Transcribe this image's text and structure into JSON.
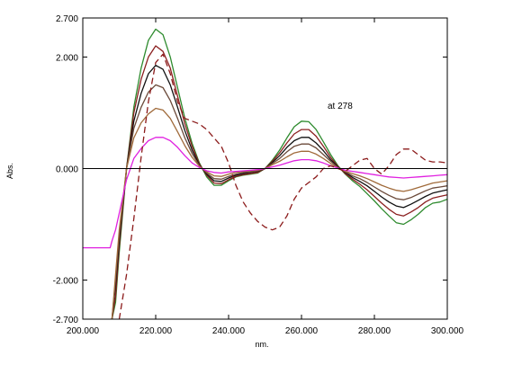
{
  "chart_data": {
    "type": "line",
    "xlabel": "nm.",
    "ylabel": "Abs.",
    "xlim": [
      200,
      300
    ],
    "ylim": [
      -2.7,
      2.7
    ],
    "x_ticks": [
      200,
      220,
      240,
      260,
      280,
      300
    ],
    "x_tick_labels": [
      "200.000",
      "220.000",
      "240.000",
      "260.000",
      "280.000",
      "300.000"
    ],
    "y_ticks": [
      2.7,
      2.0,
      0.0,
      -2.0,
      -2.7
    ],
    "y_tick_labels": [
      "2.700",
      "2.000",
      "0.000",
      "-2.000",
      "-2.700"
    ],
    "zero_line": true,
    "grid": false,
    "annotation": "at 278",
    "series": [
      {
        "color": "#2e8b2e",
        "dash": false,
        "x": [
          208,
          209,
          210,
          212,
          214,
          216,
          218,
          220,
          222,
          224,
          226,
          228,
          230,
          232,
          234,
          236,
          238,
          240,
          242,
          244,
          246,
          248,
          250,
          252,
          254,
          256,
          258,
          260,
          262,
          264,
          266,
          268,
          270,
          272,
          274,
          276,
          278,
          280,
          282,
          284,
          286,
          288,
          290,
          292,
          294,
          296,
          298,
          300
        ],
        "y": [
          -2.7,
          -2.4,
          -1.5,
          0.0,
          1.1,
          1.8,
          2.3,
          2.5,
          2.4,
          2.0,
          1.45,
          0.9,
          0.45,
          0.1,
          -0.15,
          -0.3,
          -0.3,
          -0.22,
          -0.15,
          -0.12,
          -0.1,
          -0.08,
          0.0,
          0.15,
          0.33,
          0.55,
          0.75,
          0.85,
          0.84,
          0.7,
          0.48,
          0.25,
          0.05,
          -0.1,
          -0.22,
          -0.32,
          -0.45,
          -0.58,
          -0.72,
          -0.85,
          -0.97,
          -1.0,
          -0.92,
          -0.82,
          -0.7,
          -0.62,
          -0.6,
          -0.55
        ]
      },
      {
        "color": "#8b2020",
        "dash": false,
        "x": [
          208,
          209,
          210,
          212,
          214,
          216,
          218,
          220,
          222,
          224,
          226,
          228,
          230,
          232,
          234,
          236,
          238,
          240,
          242,
          244,
          246,
          248,
          250,
          252,
          254,
          256,
          258,
          260,
          262,
          264,
          266,
          268,
          270,
          272,
          274,
          276,
          278,
          280,
          282,
          284,
          286,
          288,
          290,
          292,
          294,
          296,
          298,
          300
        ],
        "y": [
          -2.7,
          -2.3,
          -1.4,
          0.0,
          1.0,
          1.6,
          2.0,
          2.2,
          2.1,
          1.8,
          1.3,
          0.8,
          0.4,
          0.08,
          -0.12,
          -0.26,
          -0.27,
          -0.2,
          -0.14,
          -0.11,
          -0.09,
          -0.07,
          0.0,
          0.13,
          0.28,
          0.46,
          0.62,
          0.7,
          0.7,
          0.58,
          0.4,
          0.2,
          0.04,
          -0.09,
          -0.19,
          -0.28,
          -0.38,
          -0.5,
          -0.62,
          -0.73,
          -0.82,
          -0.85,
          -0.78,
          -0.7,
          -0.6,
          -0.53,
          -0.5,
          -0.47
        ]
      },
      {
        "color": "#111111",
        "dash": false,
        "x": [
          208,
          209,
          210,
          212,
          214,
          216,
          218,
          220,
          222,
          224,
          226,
          228,
          230,
          232,
          234,
          236,
          238,
          240,
          242,
          244,
          246,
          248,
          250,
          252,
          254,
          256,
          258,
          260,
          262,
          264,
          266,
          268,
          270,
          272,
          274,
          276,
          278,
          280,
          282,
          284,
          286,
          288,
          290,
          292,
          294,
          296,
          298,
          300
        ],
        "y": [
          -2.7,
          -2.1,
          -1.3,
          0.0,
          0.85,
          1.35,
          1.7,
          1.85,
          1.78,
          1.5,
          1.1,
          0.68,
          0.33,
          0.06,
          -0.1,
          -0.22,
          -0.23,
          -0.17,
          -0.12,
          -0.09,
          -0.07,
          -0.05,
          0.0,
          0.11,
          0.23,
          0.38,
          0.5,
          0.56,
          0.56,
          0.46,
          0.32,
          0.16,
          0.03,
          -0.07,
          -0.16,
          -0.23,
          -0.31,
          -0.41,
          -0.51,
          -0.6,
          -0.67,
          -0.7,
          -0.64,
          -0.57,
          -0.5,
          -0.44,
          -0.41,
          -0.38
        ]
      },
      {
        "color": "#6b4a3a",
        "dash": false,
        "x": [
          208,
          209,
          210,
          212,
          214,
          216,
          218,
          220,
          222,
          224,
          226,
          228,
          230,
          232,
          234,
          236,
          238,
          240,
          242,
          244,
          246,
          248,
          250,
          252,
          254,
          256,
          258,
          260,
          262,
          264,
          266,
          268,
          270,
          272,
          274,
          276,
          278,
          280,
          282,
          284,
          286,
          288,
          290,
          292,
          294,
          296,
          298,
          300
        ],
        "y": [
          -2.7,
          -2.0,
          -1.2,
          0.0,
          0.72,
          1.1,
          1.37,
          1.5,
          1.45,
          1.22,
          0.9,
          0.55,
          0.27,
          0.05,
          -0.08,
          -0.18,
          -0.19,
          -0.14,
          -0.1,
          -0.07,
          -0.06,
          -0.04,
          0.0,
          0.09,
          0.18,
          0.3,
          0.4,
          0.44,
          0.44,
          0.37,
          0.25,
          0.13,
          0.02,
          -0.06,
          -0.13,
          -0.18,
          -0.25,
          -0.33,
          -0.41,
          -0.48,
          -0.54,
          -0.56,
          -0.52,
          -0.46,
          -0.4,
          -0.35,
          -0.33,
          -0.31
        ]
      },
      {
        "color": "#a06a3a",
        "dash": false,
        "x": [
          208,
          209,
          210,
          212,
          214,
          216,
          218,
          220,
          222,
          224,
          226,
          228,
          230,
          232,
          234,
          236,
          238,
          240,
          242,
          244,
          246,
          248,
          250,
          252,
          254,
          256,
          258,
          260,
          262,
          264,
          266,
          268,
          270,
          272,
          274,
          276,
          278,
          280,
          282,
          284,
          286,
          288,
          290,
          292,
          294,
          296,
          298,
          300
        ],
        "y": [
          -2.7,
          -1.9,
          -1.1,
          0.0,
          0.55,
          0.82,
          0.98,
          1.08,
          1.05,
          0.9,
          0.66,
          0.41,
          0.2,
          0.04,
          -0.06,
          -0.13,
          -0.14,
          -0.1,
          -0.07,
          -0.05,
          -0.04,
          -0.03,
          0.0,
          0.07,
          0.13,
          0.21,
          0.28,
          0.31,
          0.31,
          0.26,
          0.18,
          0.09,
          0.01,
          -0.05,
          -0.09,
          -0.13,
          -0.18,
          -0.24,
          -0.3,
          -0.35,
          -0.39,
          -0.41,
          -0.38,
          -0.34,
          -0.3,
          -0.26,
          -0.24,
          -0.22
        ]
      },
      {
        "color": "#e020e0",
        "dash": false,
        "x": [
          200,
          203,
          206,
          207.5,
          208,
          209,
          210,
          212,
          214,
          216,
          218,
          220,
          222,
          224,
          226,
          228,
          230,
          232,
          234,
          236,
          238,
          240,
          242,
          244,
          246,
          248,
          250,
          252,
          254,
          256,
          258,
          260,
          262,
          264,
          266,
          268,
          270,
          272,
          274,
          276,
          278,
          280,
          282,
          284,
          286,
          288,
          290,
          292,
          294,
          296,
          298,
          300
        ],
        "y": [
          -1.42,
          -1.42,
          -1.42,
          -1.42,
          -1.3,
          -1.1,
          -0.8,
          -0.2,
          0.18,
          0.36,
          0.5,
          0.56,
          0.56,
          0.5,
          0.38,
          0.23,
          0.1,
          0.02,
          -0.04,
          -0.07,
          -0.08,
          -0.06,
          -0.05,
          -0.04,
          -0.03,
          -0.02,
          0.0,
          0.03,
          0.06,
          0.1,
          0.14,
          0.16,
          0.16,
          0.14,
          0.1,
          0.05,
          0.01,
          -0.03,
          -0.05,
          -0.07,
          -0.09,
          -0.11,
          -0.13,
          -0.15,
          -0.16,
          -0.17,
          -0.16,
          -0.15,
          -0.14,
          -0.13,
          -0.12,
          -0.11
        ]
      },
      {
        "color": "#8b1a1a",
        "dash": true,
        "x": [
          210,
          212,
          214,
          216,
          218,
          220,
          222,
          224,
          226,
          228,
          230,
          232,
          234,
          236,
          238,
          240,
          242,
          244,
          246,
          248,
          250,
          252,
          254,
          256,
          258,
          260,
          262,
          264,
          266,
          268,
          270,
          272,
          274,
          276,
          278,
          280,
          282,
          284,
          286,
          288,
          290,
          292,
          294,
          296,
          298,
          300
        ],
        "y": [
          -2.7,
          -1.9,
          -0.9,
          0.2,
          1.2,
          1.9,
          2.05,
          1.7,
          1.2,
          0.9,
          0.85,
          0.8,
          0.7,
          0.55,
          0.4,
          0.1,
          -0.3,
          -0.6,
          -0.8,
          -0.95,
          -1.05,
          -1.1,
          -1.05,
          -0.85,
          -0.55,
          -0.35,
          -0.25,
          -0.15,
          0.0,
          0.05,
          0.0,
          -0.05,
          0.05,
          0.15,
          0.18,
          0.0,
          -0.1,
          0.05,
          0.25,
          0.35,
          0.35,
          0.25,
          0.15,
          0.12,
          0.12,
          0.1
        ]
      }
    ]
  }
}
